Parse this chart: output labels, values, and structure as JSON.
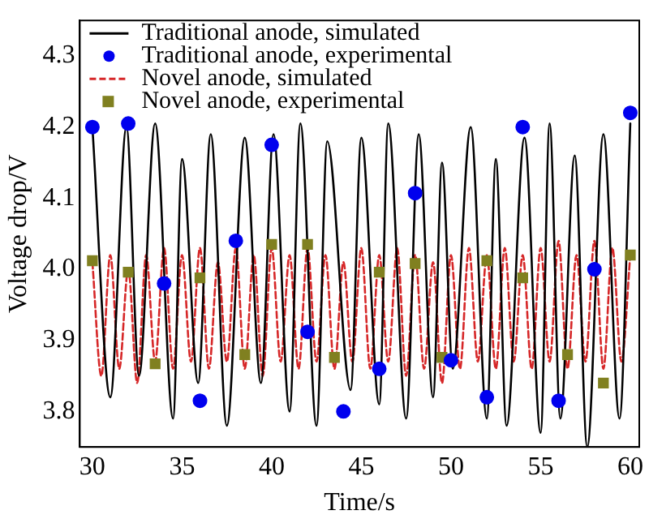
{
  "chart_data": {
    "type": "line",
    "xlabel": "Time/s",
    "ylabel": "Voltage drop/V",
    "xlim": [
      29.3,
      60.5
    ],
    "xticks": [
      30,
      35,
      40,
      45,
      50,
      55,
      60
    ],
    "ylim": [
      3.75,
      4.35
    ],
    "yticks": [
      {
        "value": 3.8,
        "label": "3.8"
      },
      {
        "value": 3.9,
        "label": "3.9"
      },
      {
        "value": 4.0,
        "label": "4.0"
      },
      {
        "value": 4.1,
        "label": "4.1"
      },
      {
        "value": 4.2,
        "label": "4.2"
      },
      {
        "value": 4.3,
        "label": "4.3"
      }
    ],
    "grid": false,
    "legend": "top left",
    "series": [
      {
        "name": "Traditional anode, simulated",
        "color": "#000000",
        "line_style": "solid",
        "marker": "none",
        "x": [
          30,
          31.0,
          31.9,
          32.6,
          33.5,
          34.5,
          35.0,
          35.9,
          36.6,
          37.5,
          38.5,
          39.4,
          40.1,
          41.0,
          41.6,
          42.5,
          43.1,
          44.4,
          45.0,
          46.0,
          46.5,
          47.5,
          48.2,
          49.0,
          49.5,
          50.1,
          51.1,
          52.0,
          52.5,
          53.1,
          54.1,
          55.0,
          55.5,
          56.1,
          56.9,
          57.6,
          58.5,
          59.4,
          60
        ],
        "values": [
          4.2,
          3.82,
          4.2,
          3.85,
          4.205,
          3.79,
          4.155,
          3.84,
          4.19,
          3.78,
          4.185,
          3.84,
          4.19,
          3.8,
          4.205,
          3.78,
          4.18,
          3.83,
          4.185,
          3.81,
          4.205,
          3.79,
          4.19,
          3.82,
          4.15,
          3.86,
          4.2,
          3.79,
          4.155,
          3.78,
          4.185,
          3.77,
          4.205,
          3.79,
          4.16,
          3.75,
          4.19,
          3.79,
          4.205
        ]
      },
      {
        "name": "Traditional anode, experimental",
        "type": "scatter",
        "color": "#0000ee",
        "marker": "circle",
        "x": [
          30,
          32,
          34,
          36,
          38,
          40,
          42,
          44,
          46,
          48,
          50,
          52,
          54,
          56,
          58,
          60
        ],
        "values": [
          4.2,
          4.205,
          3.98,
          3.815,
          4.04,
          4.175,
          3.912,
          3.8,
          3.86,
          4.107,
          3.872,
          3.82,
          4.2,
          3.815,
          4.0,
          4.22
        ]
      },
      {
        "name": "Novel anode, simulated",
        "color": "#d62728",
        "line_style": "dashed",
        "marker": "none",
        "x": [
          30,
          30.5,
          31,
          31.5,
          32,
          32.5,
          33,
          33.5,
          34,
          34.5,
          35,
          35.5,
          36,
          36.5,
          37,
          37.5,
          38,
          38.5,
          39,
          39.5,
          40,
          40.5,
          41,
          41.5,
          42,
          42.5,
          43,
          43.5,
          44,
          44.5,
          45,
          45.5,
          46,
          46.5,
          47,
          47.5,
          48,
          48.5,
          49,
          49.5,
          50,
          50.5,
          51,
          51.5,
          52,
          52.5,
          53,
          53.5,
          54,
          54.5,
          55,
          55.5,
          56,
          56.5,
          57,
          57.5,
          58,
          58.5,
          59,
          59.5,
          60
        ],
        "values": [
          4.01,
          3.85,
          4.02,
          3.86,
          4.0,
          3.84,
          4.02,
          3.87,
          4.03,
          3.86,
          4.02,
          3.87,
          4.03,
          3.86,
          4.01,
          3.87,
          4.03,
          3.86,
          4.02,
          3.85,
          4.03,
          3.87,
          4.02,
          3.86,
          4.03,
          3.87,
          4.02,
          3.86,
          4.01,
          3.87,
          4.03,
          3.86,
          4.02,
          3.87,
          4.03,
          3.85,
          4.02,
          3.86,
          4.01,
          3.84,
          4.02,
          3.86,
          4.03,
          3.87,
          4.02,
          3.86,
          4.03,
          3.87,
          4.02,
          3.86,
          4.03,
          3.87,
          4.04,
          3.86,
          4.02,
          3.87,
          4.04,
          3.86,
          4.03,
          3.87,
          4.02
        ]
      },
      {
        "name": "Novel anode, experimental",
        "type": "scatter",
        "color": "#808020",
        "marker": "square",
        "x": [
          30,
          32,
          33.5,
          36,
          38.5,
          40,
          42,
          43.5,
          46,
          48,
          49.5,
          52,
          54,
          56.5,
          58.5,
          60
        ],
        "values": [
          4.012,
          3.996,
          3.867,
          3.988,
          3.88,
          4.035,
          4.035,
          3.876,
          3.996,
          4.008,
          3.876,
          4.012,
          3.988,
          3.88,
          3.84,
          4.02
        ]
      }
    ]
  }
}
